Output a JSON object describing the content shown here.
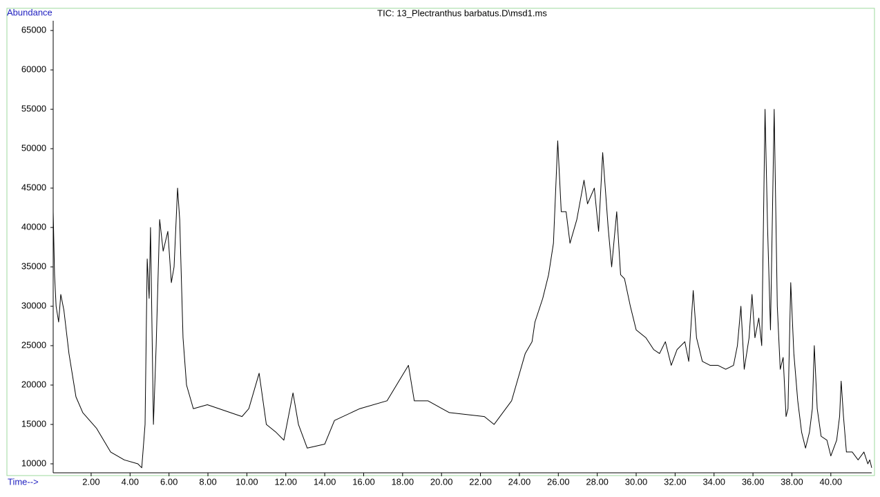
{
  "chart_data": {
    "type": "line",
    "title": "TIC: 13_Plectranthus barbatus.D\\msd1.ms",
    "y_label": "Abundance",
    "x_label": "Time-->",
    "xlim": [
      0.05,
      42.1
    ],
    "ylim": [
      8860,
      66240
    ],
    "xticks": [
      {
        "value": 2,
        "label": "2.00"
      },
      {
        "value": 4,
        "label": "4.00"
      },
      {
        "value": 6,
        "label": "6.00"
      },
      {
        "value": 8,
        "label": "8.00"
      },
      {
        "value": 10,
        "label": "10.00"
      },
      {
        "value": 12,
        "label": "12.00"
      },
      {
        "value": 14,
        "label": "14.00"
      },
      {
        "value": 16,
        "label": "16.00"
      },
      {
        "value": 18,
        "label": "18.00"
      },
      {
        "value": 20,
        "label": "20.00"
      },
      {
        "value": 22,
        "label": "22.00"
      },
      {
        "value": 24,
        "label": "24.00"
      },
      {
        "value": 26,
        "label": "26.00"
      },
      {
        "value": 28,
        "label": "28.00"
      },
      {
        "value": 30,
        "label": "30.00"
      },
      {
        "value": 32,
        "label": "32.00"
      },
      {
        "value": 34,
        "label": "34.00"
      },
      {
        "value": 36,
        "label": "36.00"
      },
      {
        "value": 38,
        "label": "38.00"
      },
      {
        "value": 40,
        "label": "40.00"
      }
    ],
    "yticks": [
      10000,
      15000,
      20000,
      25000,
      30000,
      35000,
      40000,
      45000,
      50000,
      55000,
      60000,
      65000
    ],
    "x": [
      0.05,
      0.12,
      0.2,
      0.33,
      0.44,
      0.6,
      0.86,
      1.22,
      1.57,
      2.28,
      3.0,
      3.7,
      4.4,
      4.6,
      4.77,
      4.88,
      4.98,
      5.05,
      5.2,
      5.34,
      5.52,
      5.7,
      5.94,
      6.12,
      6.26,
      6.44,
      6.55,
      6.72,
      6.9,
      7.25,
      7.97,
      9.75,
      10.1,
      10.63,
      11.0,
      11.5,
      11.9,
      12.37,
      12.65,
      13.1,
      14.0,
      14.5,
      15.8,
      17.2,
      18.3,
      18.6,
      19.3,
      20.4,
      22.2,
      22.7,
      23.6,
      23.95,
      24.3,
      24.65,
      24.8,
      25.2,
      25.5,
      25.75,
      25.97,
      26.15,
      26.4,
      26.6,
      26.95,
      27.32,
      27.5,
      27.85,
      28.07,
      28.28,
      28.56,
      28.74,
      29.0,
      29.2,
      29.4,
      29.7,
      30.0,
      30.5,
      30.9,
      31.2,
      31.5,
      31.8,
      32.1,
      32.5,
      32.7,
      32.93,
      33.1,
      33.4,
      33.8,
      34.2,
      34.6,
      35.0,
      35.2,
      35.38,
      35.55,
      35.8,
      35.95,
      36.1,
      36.3,
      36.45,
      36.62,
      36.75,
      36.9,
      37.09,
      37.25,
      37.4,
      37.55,
      37.7,
      37.8,
      37.94,
      38.1,
      38.3,
      38.5,
      38.7,
      38.9,
      39.05,
      39.15,
      39.3,
      39.5,
      39.8,
      40.0,
      40.3,
      40.45,
      40.53,
      40.65,
      40.8,
      41.1,
      41.4,
      41.7,
      41.9,
      42.0,
      42.1
    ],
    "series": [
      {
        "color": "#000000",
        "values": [
          42000,
          34000,
          30000,
          28000,
          31500,
          29500,
          24000,
          18500,
          16500,
          14500,
          11500,
          10500,
          10000,
          9500,
          15000,
          36000,
          31000,
          40000,
          15000,
          25000,
          41000,
          37000,
          39500,
          33000,
          35000,
          45000,
          41000,
          26000,
          20000,
          17000,
          17500,
          16000,
          17000,
          21500,
          15000,
          14000,
          13000,
          19000,
          15000,
          12000,
          12500,
          15500,
          17000,
          18000,
          22500,
          18000,
          18000,
          16500,
          16000,
          15000,
          18000,
          21000,
          24000,
          25500,
          28000,
          31000,
          34000,
          38000,
          51000,
          42000,
          42000,
          38000,
          41000,
          46000,
          43000,
          45000,
          39500,
          49500,
          40000,
          35000,
          42000,
          34000,
          33500,
          30000,
          27000,
          26000,
          24500,
          24000,
          25500,
          22500,
          24500,
          25500,
          23000,
          32000,
          26000,
          23000,
          22500,
          22500,
          22000,
          22500,
          25000,
          30000,
          22000,
          26000,
          31500,
          26000,
          28500,
          25000,
          55000,
          40000,
          27000,
          55000,
          30000,
          22000,
          23500,
          16000,
          17000,
          33000,
          24000,
          18000,
          14000,
          12000,
          14000,
          17000,
          25000,
          17000,
          13500,
          13000,
          11000,
          13000,
          16000,
          20500,
          16000,
          11500,
          11500,
          10500,
          11500,
          10000,
          10500,
          9500
        ]
      }
    ]
  }
}
